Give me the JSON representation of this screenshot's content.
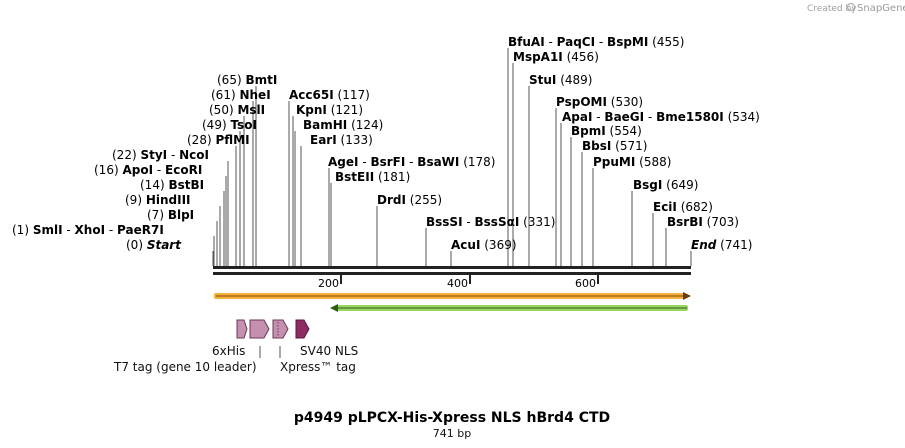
{
  "credit": {
    "prefix": "Created by",
    "brand": "SnapGene"
  },
  "title": "p4949 pLPCX-His-Xpress NLS hBrd4 CTD",
  "length_label": "741 bp",
  "ruler": {
    "ticks": [
      "200",
      "400",
      "600"
    ]
  },
  "sites": [
    {
      "pos": "(455)",
      "names": [
        "BfuAI",
        "PaqCI",
        "BspMI"
      ]
    },
    {
      "pos": "(456)",
      "names": [
        "MspA1I"
      ]
    },
    {
      "pos": "(489)",
      "names": [
        "StuI"
      ]
    },
    {
      "pos": "(530)",
      "names": [
        "PspOMI"
      ]
    },
    {
      "pos": "(534)",
      "names": [
        "ApaI",
        "BaeGI",
        "Bme1580I"
      ]
    },
    {
      "pos": "(554)",
      "names": [
        "BpmI"
      ]
    },
    {
      "pos": "(571)",
      "names": [
        "BbsI"
      ]
    },
    {
      "pos": "(588)",
      "names": [
        "PpuMI"
      ]
    },
    {
      "pos": "(649)",
      "names": [
        "BsgI"
      ]
    },
    {
      "pos": "(682)",
      "names": [
        "EciI"
      ]
    },
    {
      "pos": "(703)",
      "names": [
        "BsrBI"
      ]
    },
    {
      "pos": "(741)",
      "names": [
        "End"
      ]
    },
    {
      "pos": "(65)",
      "names": [
        "BmtI"
      ]
    },
    {
      "pos": "(61)",
      "names": [
        "NheI"
      ]
    },
    {
      "pos": "(50)",
      "names": [
        "MslI"
      ]
    },
    {
      "pos": "(49)",
      "names": [
        "TsoI"
      ]
    },
    {
      "pos": "(28)",
      "names": [
        "PflMI"
      ]
    },
    {
      "pos": "(22)",
      "names": [
        "StyI",
        "NcoI"
      ]
    },
    {
      "pos": "(16)",
      "names": [
        "ApoI",
        "EcoRI"
      ]
    },
    {
      "pos": "(14)",
      "names": [
        "BstBI"
      ]
    },
    {
      "pos": "(9)",
      "names": [
        "HindIII"
      ]
    },
    {
      "pos": "(7)",
      "names": [
        "BlpI"
      ]
    },
    {
      "pos": "(1)",
      "names": [
        "SmlI",
        "XhoI",
        "PaeR7I"
      ]
    },
    {
      "pos": "(0)",
      "names": [
        "Start"
      ]
    },
    {
      "pos": "(117)",
      "names": [
        "Acc65I"
      ]
    },
    {
      "pos": "(121)",
      "names": [
        "KpnI"
      ]
    },
    {
      "pos": "(124)",
      "names": [
        "BamHI"
      ]
    },
    {
      "pos": "(133)",
      "names": [
        "EarI"
      ]
    },
    {
      "pos": "(178)",
      "names": [
        "AgeI",
        "BsrFI",
        "BsaWI"
      ]
    },
    {
      "pos": "(181)",
      "names": [
        "BstEII"
      ]
    },
    {
      "pos": "(255)",
      "names": [
        "DrdI"
      ]
    },
    {
      "pos": "(331)",
      "names": [
        "BssSI",
        "BssSαI"
      ]
    },
    {
      "pos": "(369)",
      "names": [
        "AcuI"
      ]
    }
  ],
  "features": [
    {
      "name": "6xHis"
    },
    {
      "name": "T7 tag (gene 10 leader)"
    },
    {
      "name": "Xpress™ tag"
    },
    {
      "name": "SV40 NLS"
    }
  ],
  "colors": {
    "orange": "#f5a623",
    "green": "#8fd14f",
    "tag": "#c58fb0",
    "nls": "#8e2b63"
  }
}
